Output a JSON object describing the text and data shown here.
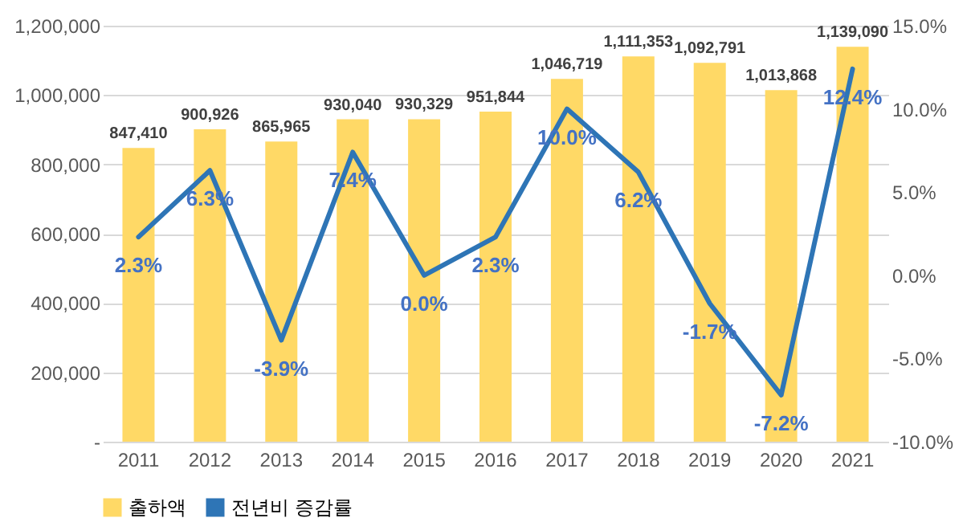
{
  "chart_data": {
    "type": "bar",
    "categories": [
      "2011",
      "2012",
      "2013",
      "2014",
      "2015",
      "2016",
      "2017",
      "2018",
      "2019",
      "2020",
      "2021"
    ],
    "series": [
      {
        "name": "출하액",
        "color": "#ffd966",
        "values": [
          847410,
          900926,
          865965,
          930040,
          930329,
          951844,
          1046719,
          1111353,
          1092791,
          1013868,
          1139090
        ],
        "value_labels": [
          "847,410",
          "900,926",
          "865,965",
          "930,040",
          "930,329",
          "951,844",
          "1,046,719",
          "1,111,353",
          "1,092,791",
          "1,013,868",
          "1,139,090"
        ]
      },
      {
        "name": "전년비 증감률",
        "type": "line",
        "axis": "y2",
        "color": "#2e75b6",
        "values": [
          2.3,
          6.3,
          -3.9,
          7.4,
          0.0,
          2.3,
          10.0,
          6.2,
          -1.7,
          -7.2,
          12.4
        ],
        "value_labels": [
          "2.3%",
          "6.3%",
          "-3.9%",
          "7.4%",
          "0.0%",
          "2.3%",
          "10.0%",
          "6.2%",
          "-1.7%",
          "-7.2%",
          "12.4%"
        ]
      }
    ],
    "ylim": [
      0,
      1200000
    ],
    "yticks": [
      {
        "value": 0,
        "label": "-"
      },
      {
        "value": 200000,
        "label": "200,000"
      },
      {
        "value": 400000,
        "label": "400,000"
      },
      {
        "value": 600000,
        "label": "600,000"
      },
      {
        "value": 800000,
        "label": "800,000"
      },
      {
        "value": 1000000,
        "label": "1,000,000"
      },
      {
        "value": 1200000,
        "label": "1,200,000"
      }
    ],
    "y2lim": [
      -10,
      15
    ],
    "y2ticks": [
      {
        "value": -10,
        "label": "-10.0%"
      },
      {
        "value": -5,
        "label": "-5.0%"
      },
      {
        "value": 0,
        "label": "0.0%"
      },
      {
        "value": 5,
        "label": "5.0%"
      },
      {
        "value": 10,
        "label": "10.0%"
      },
      {
        "value": 15,
        "label": "15.0%"
      }
    ],
    "grid": "y",
    "legend": "bottom"
  }
}
